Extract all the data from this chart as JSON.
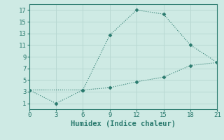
{
  "line1_x": [
    0,
    6,
    9,
    12,
    15,
    18,
    21
  ],
  "line1_y": [
    3.3,
    3.3,
    12.7,
    17.0,
    16.3,
    11.0,
    8.0
  ],
  "line2_x": [
    0,
    3,
    6,
    9,
    12,
    15,
    18,
    21
  ],
  "line2_y": [
    3.3,
    1.0,
    3.3,
    3.7,
    4.7,
    5.5,
    7.5,
    8.0
  ],
  "line_color": "#2a7a6e",
  "bg_color": "#ceeae4",
  "grid_color": "#b8d8d2",
  "xlabel": "Humidex (Indice chaleur)",
  "xlim": [
    0,
    21
  ],
  "ylim": [
    0,
    18
  ],
  "xticks": [
    0,
    3,
    6,
    9,
    12,
    15,
    18,
    21
  ],
  "yticks": [
    1,
    3,
    5,
    7,
    9,
    11,
    13,
    15,
    17
  ],
  "xlabel_fontsize": 7.5,
  "tick_fontsize": 6.5
}
